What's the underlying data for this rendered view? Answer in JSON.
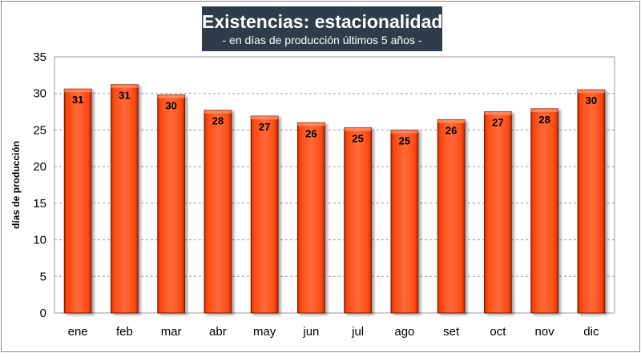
{
  "chart_data": {
    "type": "bar",
    "title": "Existencias: estacionalidad",
    "subtitle": "- en días de producción últimos 5 años -",
    "ylabel": "días de producción",
    "xlabel": "",
    "categories": [
      "ene",
      "feb",
      "mar",
      "abr",
      "may",
      "jun",
      "jul",
      "ago",
      "set",
      "oct",
      "nov",
      "dic"
    ],
    "values": [
      30.6,
      31.2,
      29.8,
      27.7,
      26.9,
      26.0,
      25.3,
      25.0,
      26.4,
      27.5,
      27.9,
      30.5
    ],
    "data_labels": [
      "31",
      "31",
      "30",
      "28",
      "27",
      "26",
      "25",
      "25",
      "26",
      "27",
      "28",
      "30"
    ],
    "ylim": [
      0,
      35
    ],
    "yticks": [
      0,
      5,
      10,
      15,
      20,
      25,
      30,
      35
    ],
    "grid": true,
    "bar_color": "#ff4a14",
    "bar_edge_color": "#7a1800"
  }
}
